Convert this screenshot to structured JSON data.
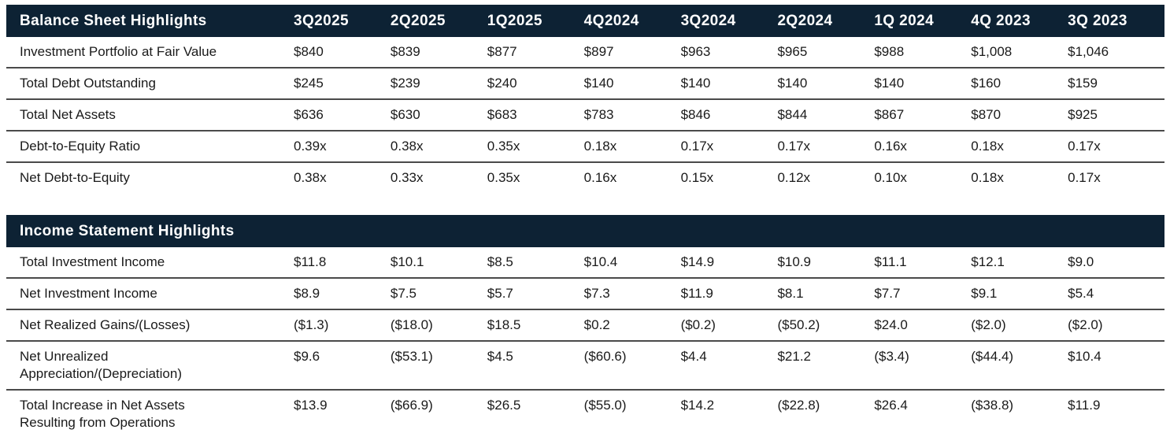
{
  "colors": {
    "section_header_bg": "#0d2234",
    "section_header_text": "#ffffff",
    "body_text": "#1a1a1a",
    "row_divider": "#4a4a4a",
    "page_bg": "#ffffff"
  },
  "quarters": [
    "3Q2025",
    "2Q2025",
    "1Q2025",
    "4Q2024",
    "3Q2024",
    "2Q2024",
    "1Q 2024",
    "4Q 2023",
    "3Q 2023"
  ],
  "tables": [
    {
      "id": "balance-sheet",
      "title": "Balance Sheet Highlights",
      "show_quarters": true,
      "rows": [
        {
          "label": "Investment Portfolio at Fair Value",
          "values": [
            "$840",
            "$839",
            "$877",
            "$897",
            "$963",
            "$965",
            "$988",
            "$1,008",
            "$1,046"
          ]
        },
        {
          "label": "Total Debt Outstanding",
          "values": [
            "$245",
            "$239",
            "$240",
            "$140",
            "$140",
            "$140",
            "$140",
            "$160",
            "$159"
          ]
        },
        {
          "label": "Total Net Assets",
          "values": [
            "$636",
            "$630",
            "$683",
            "$783",
            "$846",
            "$844",
            "$867",
            "$870",
            "$925"
          ]
        },
        {
          "label": "Debt-to-Equity Ratio",
          "values": [
            "0.39x",
            "0.38x",
            "0.35x",
            "0.18x",
            "0.17x",
            "0.17x",
            "0.16x",
            "0.18x",
            "0.17x"
          ]
        },
        {
          "label": "Net Debt-to-Equity",
          "values": [
            "0.38x",
            "0.33x",
            "0.35x",
            "0.16x",
            "0.15x",
            "0.12x",
            "0.10x",
            "0.18x",
            "0.17x"
          ]
        }
      ]
    },
    {
      "id": "income-statement",
      "title": "Income Statement Highlights",
      "show_quarters": false,
      "rows": [
        {
          "label": "Total Investment Income",
          "values": [
            "$11.8",
            "$10.1",
            "$8.5",
            "$10.4",
            "$14.9",
            "$10.9",
            "$11.1",
            "$12.1",
            "$9.0"
          ]
        },
        {
          "label": "Net Investment Income",
          "values": [
            "$8.9",
            "$7.5",
            "$5.7",
            "$7.3",
            "$11.9",
            "$8.1",
            "$7.7",
            "$9.1",
            "$5.4"
          ]
        },
        {
          "label": "Net Realized Gains/(Losses)",
          "values": [
            "($1.3)",
            "($18.0)",
            "$18.5",
            "$0.2",
            "($0.2)",
            "($50.2)",
            "$24.0",
            "($2.0)",
            "($2.0)"
          ]
        },
        {
          "label": "Net Unrealized Appreciation/(Depreciation)",
          "values": [
            "$9.6",
            "($53.1)",
            "$4.5",
            "($60.6)",
            "$4.4",
            "$21.2",
            "($3.4)",
            "($44.4)",
            "$10.4"
          ]
        },
        {
          "label": "Total Increase in Net Assets Resulting from Operations",
          "values": [
            "$13.9",
            "($66.9)",
            "$26.5",
            "($55.0)",
            "$14.2",
            "($22.8)",
            "$26.4",
            "($38.8)",
            "$11.9"
          ]
        }
      ]
    }
  ],
  "chart_data": [
    {
      "type": "table",
      "title": "Balance Sheet Highlights",
      "categories": [
        "3Q2025",
        "2Q2025",
        "1Q2025",
        "4Q2024",
        "3Q2024",
        "2Q2024",
        "1Q 2024",
        "4Q 2023",
        "3Q 2023"
      ],
      "series": [
        {
          "name": "Investment Portfolio at Fair Value",
          "values": [
            840,
            839,
            877,
            897,
            963,
            965,
            988,
            1008,
            1046
          ]
        },
        {
          "name": "Total Debt Outstanding",
          "values": [
            245,
            239,
            240,
            140,
            140,
            140,
            140,
            160,
            159
          ]
        },
        {
          "name": "Total Net Assets",
          "values": [
            636,
            630,
            683,
            783,
            846,
            844,
            867,
            870,
            925
          ]
        },
        {
          "name": "Debt-to-Equity Ratio",
          "values": [
            0.39,
            0.38,
            0.35,
            0.18,
            0.17,
            0.17,
            0.16,
            0.18,
            0.17
          ]
        },
        {
          "name": "Net Debt-to-Equity",
          "values": [
            0.38,
            0.33,
            0.35,
            0.16,
            0.15,
            0.12,
            0.1,
            0.18,
            0.17
          ]
        }
      ]
    },
    {
      "type": "table",
      "title": "Income Statement Highlights",
      "categories": [
        "3Q2025",
        "2Q2025",
        "1Q2025",
        "4Q2024",
        "3Q2024",
        "2Q2024",
        "1Q 2024",
        "4Q 2023",
        "3Q 2023"
      ],
      "series": [
        {
          "name": "Total Investment Income",
          "values": [
            11.8,
            10.1,
            8.5,
            10.4,
            14.9,
            10.9,
            11.1,
            12.1,
            9.0
          ]
        },
        {
          "name": "Net Investment Income",
          "values": [
            8.9,
            7.5,
            5.7,
            7.3,
            11.9,
            8.1,
            7.7,
            9.1,
            5.4
          ]
        },
        {
          "name": "Net Realized Gains/(Losses)",
          "values": [
            -1.3,
            -18.0,
            18.5,
            0.2,
            -0.2,
            -50.2,
            24.0,
            -2.0,
            -2.0
          ]
        },
        {
          "name": "Net Unrealized Appreciation/(Depreciation)",
          "values": [
            9.6,
            -53.1,
            4.5,
            -60.6,
            4.4,
            21.2,
            -3.4,
            -44.4,
            10.4
          ]
        },
        {
          "name": "Total Increase in Net Assets Resulting from Operations",
          "values": [
            13.9,
            -66.9,
            26.5,
            -55.0,
            14.2,
            -22.8,
            26.4,
            -38.8,
            11.9
          ]
        }
      ]
    }
  ]
}
